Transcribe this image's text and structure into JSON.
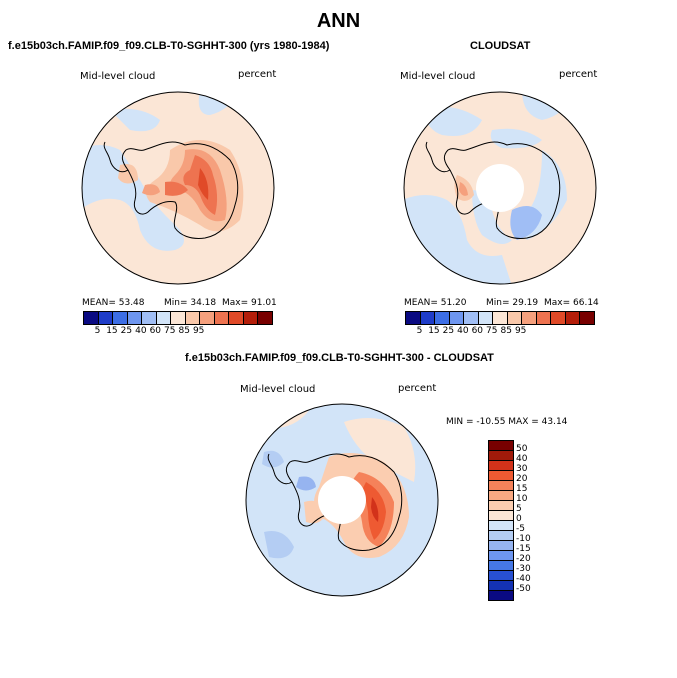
{
  "title": "ANN",
  "panels": {
    "model": {
      "title": "f.e15b03ch.FAMIP.f09_f09.CLB-T0-SGHHT-300 (yrs 1980-1984)",
      "left_label": "Mid-level cloud",
      "right_label": "percent",
      "stats": {
        "mean": "MEAN= 53.48",
        "min": "Min= 34.18",
        "max": "Max= 91.01"
      }
    },
    "obs": {
      "title": "CLOUDSAT",
      "left_label": "Mid-level cloud",
      "right_label": "percent",
      "stats": {
        "mean": "MEAN= 51.20",
        "min": "Min= 29.19",
        "max": "Max= 66.14"
      }
    },
    "diff": {
      "title": "f.e15b03ch.FAMIP.f09_f09.CLB-T0-SGHHT-300 - CLOUDSAT",
      "left_label": "Mid-level cloud",
      "right_label": "percent",
      "stats_text": "MIN = -10.55 MAX = 43.14"
    }
  },
  "colorbar_main": {
    "colors": [
      "#0a0a82",
      "#1e3cc8",
      "#3c6ee6",
      "#6e96f0",
      "#a0bef5",
      "#d2e4f8",
      "#fbe6d6",
      "#f9c8aa",
      "#f5a07d",
      "#ee7350",
      "#e04a28",
      "#b41e0a",
      "#780000"
    ],
    "ticks": [
      "5",
      "15",
      "25",
      "40",
      "60",
      "75",
      "85",
      "95"
    ]
  },
  "colorbar_diff": {
    "colors": [
      "#780000",
      "#a01a0a",
      "#d2321a",
      "#ee5a32",
      "#f5825a",
      "#f8a882",
      "#fbcdb0",
      "#fbe6d6",
      "#d2e4f8",
      "#b4cdf3",
      "#96b4f0",
      "#6e96f0",
      "#4678e6",
      "#2850d2",
      "#1432b4",
      "#0a0a82"
    ],
    "ticks": [
      "50",
      "40",
      "30",
      "20",
      "15",
      "10",
      "5",
      "0",
      "-5",
      "-10",
      "-15",
      "-20",
      "-30",
      "-40",
      "-50"
    ]
  }
}
